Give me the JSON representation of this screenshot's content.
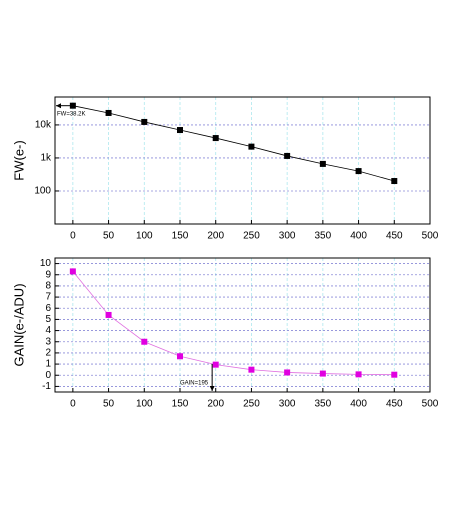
{
  "chart_data": [
    {
      "type": "line",
      "y_label": "FW(e-)",
      "log_y": true,
      "grid": true,
      "color": "#000000",
      "marker_color": "#000000",
      "x": [
        0,
        50,
        100,
        150,
        200,
        250,
        300,
        350,
        400,
        450
      ],
      "values": [
        38200,
        23000,
        12300,
        7000,
        4000,
        2200,
        1150,
        660,
        400,
        200
      ],
      "xlim": [
        -25,
        500
      ],
      "xticks": [
        0,
        50,
        100,
        150,
        200,
        250,
        300,
        350,
        400,
        450,
        500
      ],
      "ylim": [
        10,
        70000
      ],
      "yticks": [
        {
          "value": 100,
          "label": "100"
        },
        {
          "value": 1000,
          "label": "1k"
        },
        {
          "value": 10000,
          "label": "10k"
        }
      ],
      "annotation": {
        "text": "FW=38.2K",
        "y": 38200
      }
    },
    {
      "type": "line",
      "y_label": "GAIN(e-/ADU)",
      "log_y": false,
      "grid": true,
      "color": "#e070e0",
      "marker_color": "#e000e0",
      "x": [
        0,
        50,
        100,
        150,
        200,
        250,
        300,
        350,
        400,
        450
      ],
      "values": [
        9.3,
        5.4,
        3.0,
        1.7,
        0.95,
        0.5,
        0.25,
        0.15,
        0.08,
        0.05
      ],
      "xlim": [
        -25,
        500
      ],
      "xticks": [
        0,
        50,
        100,
        150,
        200,
        250,
        300,
        350,
        400,
        450,
        500
      ],
      "ylim": [
        -1.5,
        10.5
      ],
      "yticks": [
        -1,
        0,
        1,
        2,
        3,
        4,
        5,
        6,
        7,
        8,
        9,
        10
      ],
      "annotation": {
        "text": "GAIN=195",
        "x": 195
      }
    }
  ]
}
